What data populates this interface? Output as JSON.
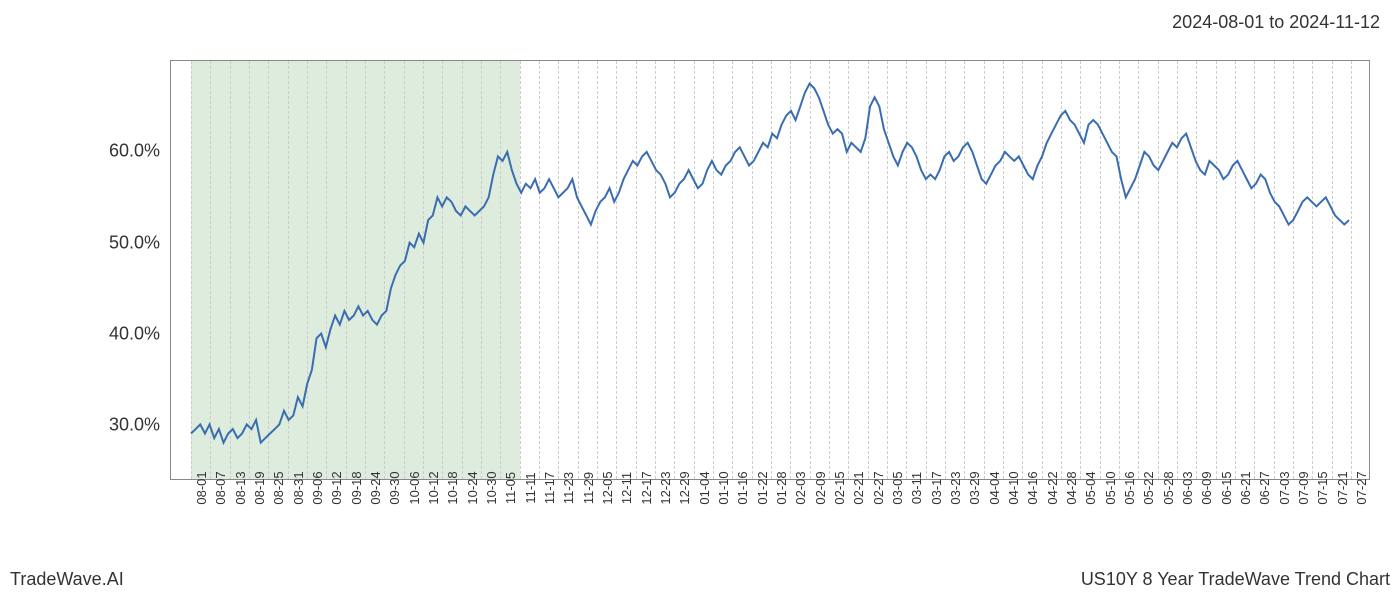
{
  "date_range_label": "2024-08-01 to 2024-11-12",
  "footer_left": "TradeWave.AI",
  "footer_right": "US10Y 8 Year TradeWave Trend Chart",
  "chart": {
    "type": "line",
    "line_color": "#3a6db0",
    "line_width": 2.0,
    "background_color": "#ffffff",
    "border_color": "#888888",
    "grid_color": "#cccccc",
    "shaded_color": "rgba(160,200,160,0.35)",
    "shaded_x_start_index": 0,
    "shaded_x_end_index": 17,
    "ylim": [
      24,
      70
    ],
    "y_ticks": [
      30.0,
      40.0,
      50.0,
      60.0
    ],
    "y_tick_labels": [
      "30.0%",
      "40.0%",
      "50.0%",
      "60.0%"
    ],
    "y_label_fontsize": 18,
    "x_labels": [
      "08-01",
      "08-07",
      "08-13",
      "08-19",
      "08-25",
      "08-31",
      "09-06",
      "09-12",
      "09-18",
      "09-24",
      "09-30",
      "10-06",
      "10-12",
      "10-18",
      "10-24",
      "10-30",
      "11-05",
      "11-11",
      "11-17",
      "11-23",
      "11-29",
      "12-05",
      "12-11",
      "12-17",
      "12-23",
      "12-29",
      "01-04",
      "01-10",
      "01-16",
      "01-22",
      "01-28",
      "02-03",
      "02-09",
      "02-15",
      "02-21",
      "02-27",
      "03-05",
      "03-11",
      "03-17",
      "03-23",
      "03-29",
      "04-04",
      "04-10",
      "04-16",
      "04-22",
      "04-28",
      "05-04",
      "05-10",
      "05-16",
      "05-22",
      "05-28",
      "06-03",
      "06-09",
      "06-15",
      "06-21",
      "06-27",
      "07-03",
      "07-09",
      "07-15",
      "07-21",
      "07-27"
    ],
    "x_label_fontsize": 13,
    "values": [
      29.0,
      29.5,
      30.0,
      29.0,
      30.0,
      28.5,
      29.5,
      28.0,
      29.0,
      29.5,
      28.5,
      29.0,
      30.0,
      29.5,
      30.5,
      28.0,
      28.5,
      29.0,
      29.5,
      30.0,
      31.5,
      30.5,
      31.0,
      33.0,
      32.0,
      34.5,
      36.0,
      39.5,
      40.0,
      38.5,
      40.5,
      42.0,
      41.0,
      42.5,
      41.5,
      42.0,
      43.0,
      42.0,
      42.5,
      41.5,
      41.0,
      42.0,
      42.5,
      45.0,
      46.5,
      47.5,
      48.0,
      50.0,
      49.5,
      51.0,
      50.0,
      52.5,
      53.0,
      55.0,
      54.0,
      55.0,
      54.5,
      53.5,
      53.0,
      54.0,
      53.5,
      53.0,
      53.5,
      54.0,
      55.0,
      57.5,
      59.5,
      59.0,
      60.0,
      58.0,
      56.5,
      55.5,
      56.5,
      56.0,
      57.0,
      55.5,
      56.0,
      57.0,
      56.0,
      55.0,
      55.5,
      56.0,
      57.0,
      55.0,
      54.0,
      53.0,
      52.0,
      53.5,
      54.5,
      55.0,
      56.0,
      54.5,
      55.5,
      57.0,
      58.0,
      59.0,
      58.5,
      59.5,
      60.0,
      59.0,
      58.0,
      57.5,
      56.5,
      55.0,
      55.5,
      56.5,
      57.0,
      58.0,
      57.0,
      56.0,
      56.5,
      58.0,
      59.0,
      58.0,
      57.5,
      58.5,
      59.0,
      60.0,
      60.5,
      59.5,
      58.5,
      59.0,
      60.0,
      61.0,
      60.5,
      62.0,
      61.5,
      63.0,
      64.0,
      64.5,
      63.5,
      65.0,
      66.5,
      67.5,
      67.0,
      66.0,
      64.5,
      63.0,
      62.0,
      62.5,
      62.0,
      60.0,
      61.0,
      60.5,
      60.0,
      61.5,
      65.0,
      66.0,
      65.0,
      62.5,
      61.0,
      59.5,
      58.5,
      60.0,
      61.0,
      60.5,
      59.5,
      58.0,
      57.0,
      57.5,
      57.0,
      58.0,
      59.5,
      60.0,
      59.0,
      59.5,
      60.5,
      61.0,
      60.0,
      58.5,
      57.0,
      56.5,
      57.5,
      58.5,
      59.0,
      60.0,
      59.5,
      59.0,
      59.5,
      58.5,
      57.5,
      57.0,
      58.5,
      59.5,
      61.0,
      62.0,
      63.0,
      64.0,
      64.5,
      63.5,
      63.0,
      62.0,
      61.0,
      63.0,
      63.5,
      63.0,
      62.0,
      61.0,
      60.0,
      59.5,
      57.0,
      55.0,
      56.0,
      57.0,
      58.5,
      60.0,
      59.5,
      58.5,
      58.0,
      59.0,
      60.0,
      61.0,
      60.5,
      61.5,
      62.0,
      60.5,
      59.0,
      58.0,
      57.5,
      59.0,
      58.5,
      58.0,
      57.0,
      57.5,
      58.5,
      59.0,
      58.0,
      57.0,
      56.0,
      56.5,
      57.5,
      57.0,
      55.5,
      54.5,
      54.0,
      53.0,
      52.0,
      52.5,
      53.5,
      54.5,
      55.0,
      54.5,
      54.0,
      54.5,
      55.0,
      54.0,
      53.0,
      52.5,
      52.0,
      52.5
    ]
  }
}
